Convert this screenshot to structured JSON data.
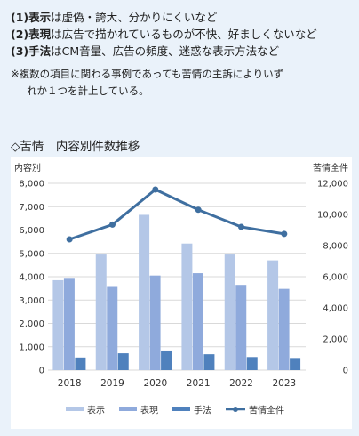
{
  "notes": [
    {
      "label": "(1)表示",
      "text": "は虚偽・誇大、分かりにくいなど"
    },
    {
      "label": "(2)表現",
      "text": "は広告で描かれているものが不快、好ましくないなど"
    },
    {
      "label": "(3)手法",
      "text": "はCM音量、広告の頻度、迷惑な表示方法など"
    }
  ],
  "remark": {
    "line1": "※複数の項目に関わる事例であっても苦情の主訴によりいず",
    "line2": "れか１つを計上している。"
  },
  "chart_title": "◇苦情　内容別件数推移",
  "chart_data": {
    "type": "bar",
    "categories": [
      "2018",
      "2019",
      "2020",
      "2021",
      "2022",
      "2023"
    ],
    "series": [
      {
        "name": "表示",
        "values": [
          3850,
          4950,
          6650,
          5420,
          4950,
          4700
        ],
        "color": "#b4c7e7",
        "axis": "left"
      },
      {
        "name": "表現",
        "values": [
          3950,
          3600,
          4050,
          4150,
          3650,
          3480
        ],
        "color": "#8faadc",
        "axis": "left"
      },
      {
        "name": "手法",
        "values": [
          540,
          720,
          840,
          680,
          560,
          520
        ],
        "color": "#4f81bd",
        "axis": "left"
      }
    ],
    "line_series": {
      "name": "苦情全件",
      "values": [
        8400,
        9350,
        11600,
        10300,
        9200,
        8750
      ],
      "color": "#3f6fa0",
      "axis": "right"
    },
    "ylabel": "内容別",
    "y2label": "苦情全件",
    "ylim": [
      0,
      8000
    ],
    "y2lim": [
      0,
      12000
    ],
    "yticks": [
      "0",
      "1,000",
      "2,000",
      "3,000",
      "4,000",
      "5,000",
      "6,000",
      "7,000",
      "8,000"
    ],
    "y2ticks": [
      "0",
      "2,000",
      "4,000",
      "6,000",
      "8,000",
      "10,000",
      "12,000"
    ],
    "grid": true,
    "legend_position": "bottom"
  }
}
